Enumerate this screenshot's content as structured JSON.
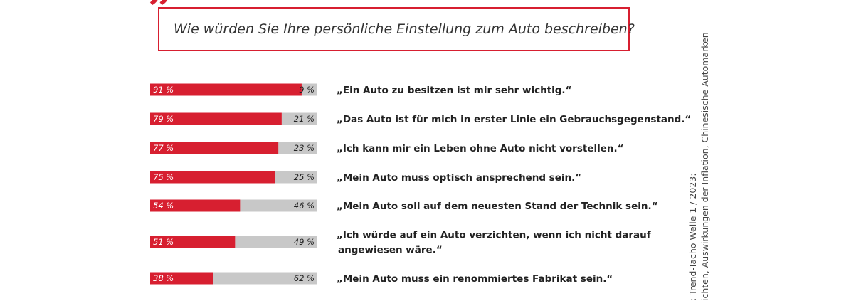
{
  "header": {
    "quote_mark": "”",
    "question": "Wie würden Sie Ihre persönliche Einstellung zum Auto beschreiben?"
  },
  "source": {
    "line1": ": Trend-Tacho Welle 1 / 2023:",
    "line2": "ichten, Auswirkungen der Inflation, Chinesische Automarken"
  },
  "colors": {
    "agree": "#d71f30",
    "disagree": "#c8c8c8",
    "accent": "#d71f30"
  },
  "chart_data": {
    "type": "bar",
    "orientation": "horizontal",
    "stacked": true,
    "xlim": [
      0,
      100
    ],
    "categories": [
      [
        "„Ein Auto zu besitzen ist mir sehr wichtig.“"
      ],
      [
        "„Das Auto ist für mich in erster Linie ein Gebrauchsgegenstand.“"
      ],
      [
        "„Ich kann mir ein Leben ohne Auto nicht vorstellen.“"
      ],
      [
        "„Mein Auto muss optisch ansprechend sein.“"
      ],
      [
        "„Mein Auto soll auf dem neuesten Stand der Technik sein.“"
      ],
      [
        "„Ich würde auf ein Auto verzichten, wenn ich nicht darauf",
        "angewiesen wäre.“"
      ],
      [
        "„Mein Auto muss ein renommiertes Fabrikat sein.“"
      ]
    ],
    "series": [
      {
        "values": [
          91,
          79,
          77,
          75,
          54,
          51,
          38
        ],
        "color": "#d71f30"
      },
      {
        "values": [
          9,
          21,
          23,
          25,
          46,
          49,
          62
        ],
        "color": "#c8c8c8"
      }
    ],
    "value_labels_first": [
      "91 %",
      "79 %",
      "77 %",
      "75 %",
      "54 %",
      "51 %",
      "38 %"
    ],
    "value_labels_second": [
      "9 %",
      "21 %",
      "23 %",
      "25 %",
      "46 %",
      "49 %",
      "62 %"
    ]
  }
}
